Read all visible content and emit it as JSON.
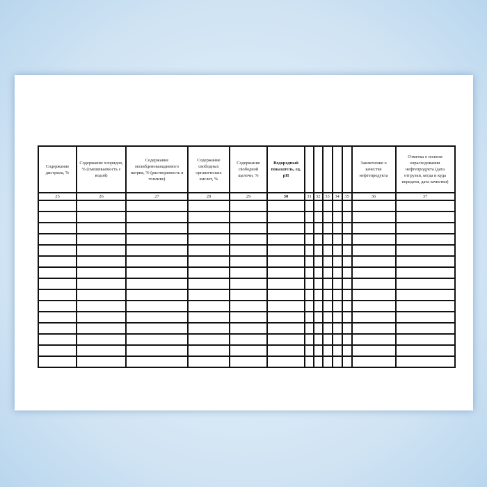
{
  "table": {
    "headers": [
      "Содержание дистрила, %",
      "Содержание хлоридов, % (смешиваемость с водой)",
      "Содержание молибденованадиевого натрия, % (растворимость в топливе)",
      "Содержание свободных органических кислот, %",
      "Содержание свободной щелочи, %",
      "Водородный показатель, ед. pH",
      "",
      "",
      "",
      "",
      "",
      "Заключение о качестве нефтепродукта",
      "Отметка о полном израсходовании нефтепродукта (дата отгрузки, когда и куда передачи, дата зачистки)"
    ],
    "numbers": [
      "25",
      "26",
      "27",
      "28",
      "29",
      "30",
      "31",
      "32",
      "33",
      "34",
      "35",
      "36",
      "37"
    ],
    "empty_rows": 15
  }
}
